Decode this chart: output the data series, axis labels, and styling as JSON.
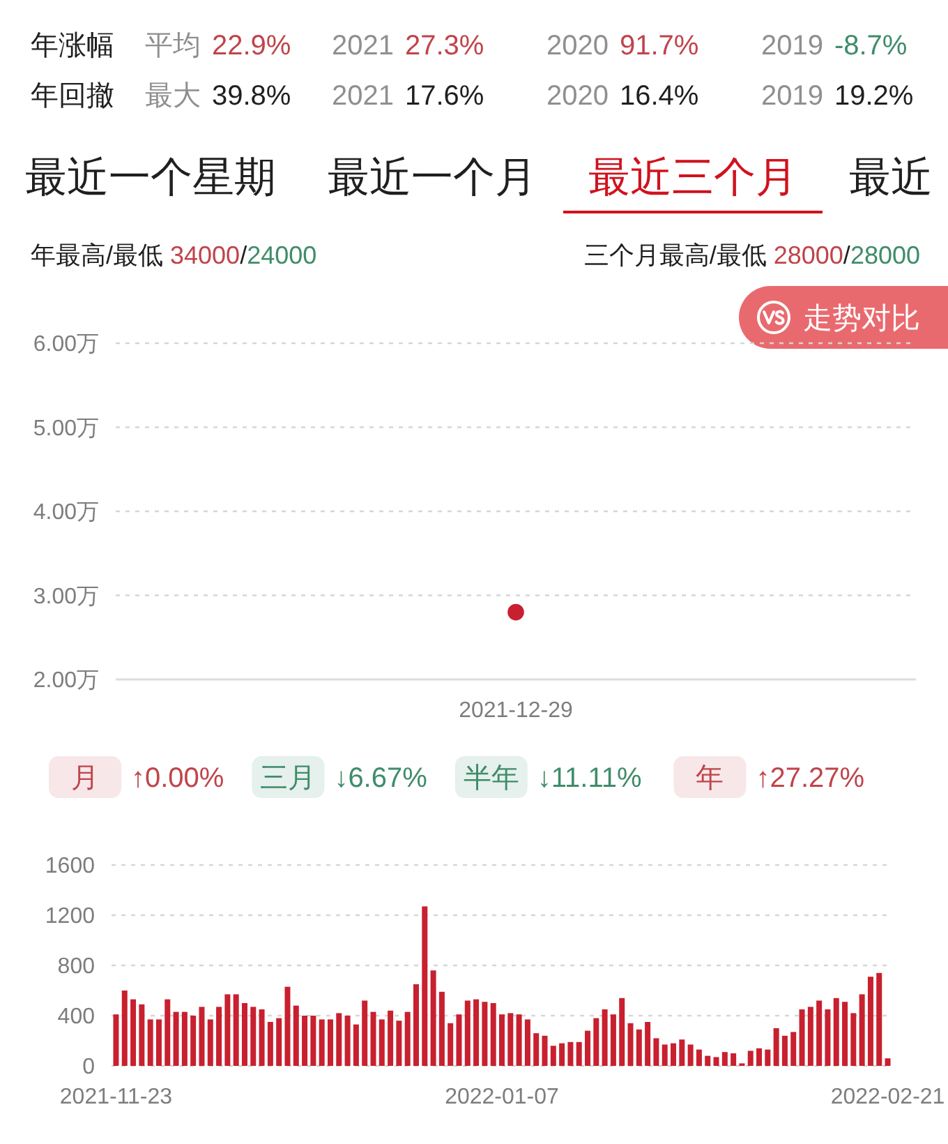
{
  "chart_data": [
    {
      "type": "other",
      "annotations": [
        "年涨幅",
        "平均",
        "22.9%",
        "2021",
        "27.3%",
        "2020",
        "91.7%",
        "2019",
        "-8.7%",
        "年回撤",
        "最大",
        "39.8%",
        "2021",
        "17.6%",
        "2020",
        "16.4%",
        "2019",
        "19.2%"
      ],
      "colors": [
        "#1f1f1f",
        "#8f8f8f",
        "#c0444b",
        "#8f8f8f",
        "#c0444b",
        "#8f8f8f",
        "#c0444b",
        "#8f8f8f",
        "#3f8c6a",
        "#1f1f1f",
        "#8f8f8f",
        "#1f1f1f",
        "#8f8f8f",
        "#1f1f1f",
        "#8f8f8f",
        "#1f1f1f",
        "#8f8f8f",
        "#1f1f1f"
      ]
    },
    {
      "type": "scatter",
      "annotations": [
        "最近一个星期",
        "最近一个月",
        "最近三个月",
        "最近",
        "年最高/最低 34000/24000",
        "三个月最高/最低 28000/28000",
        "走势对比"
      ],
      "categories": [
        "2021-12-29"
      ],
      "values": [
        2.8
      ],
      "color": "#c8202f",
      "marker": "circle",
      "ylim": [
        2,
        6
      ],
      "yticks": [
        {
          "value": 2,
          "label": "2.00万"
        },
        {
          "value": 3,
          "label": "3.00万"
        },
        {
          "value": 4,
          "label": "4.00万"
        },
        {
          "value": 5,
          "label": "5.00万"
        },
        {
          "value": 6,
          "label": "6.00万"
        }
      ],
      "grid": "y"
    },
    {
      "type": "other",
      "annotations": [
        "月",
        "↑0.00%",
        "三月",
        "↓6.67%",
        "半年",
        "↓11.11%",
        "年",
        "↑27.27%"
      ],
      "colors": [
        "#c0444b",
        "#c0444b",
        "#3f8c6a",
        "#3f8c6a",
        "#3f8c6a",
        "#3f8c6a",
        "#c0444b",
        "#c0444b"
      ]
    },
    {
      "type": "bar",
      "categories": [
        "2021-11-23",
        null,
        null,
        null,
        null,
        null,
        null,
        null,
        null,
        null,
        null,
        null,
        null,
        null,
        null,
        null,
        null,
        null,
        null,
        null,
        null,
        null,
        null,
        null,
        null,
        null,
        null,
        null,
        null,
        null,
        null,
        null,
        null,
        null,
        null,
        null,
        null,
        null,
        null,
        null,
        null,
        null,
        null,
        null,
        null,
        "2022-01-07",
        null,
        null,
        null,
        null,
        null,
        null,
        null,
        null,
        null,
        null,
        null,
        null,
        null,
        null,
        null,
        null,
        null,
        null,
        null,
        null,
        null,
        null,
        null,
        null,
        null,
        null,
        null,
        null,
        null,
        null,
        null,
        null,
        null,
        null,
        null,
        null,
        null,
        null,
        null,
        null,
        null,
        null,
        null,
        null,
        "2022-02-21"
      ],
      "values": [
        410,
        600,
        530,
        490,
        370,
        370,
        530,
        430,
        430,
        400,
        470,
        370,
        470,
        570,
        570,
        500,
        470,
        450,
        350,
        380,
        630,
        480,
        400,
        400,
        370,
        370,
        420,
        400,
        330,
        520,
        430,
        370,
        440,
        360,
        430,
        650,
        1270,
        760,
        590,
        340,
        410,
        520,
        530,
        510,
        500,
        410,
        420,
        410,
        370,
        260,
        240,
        160,
        180,
        190,
        190,
        280,
        380,
        450,
        410,
        540,
        340,
        290,
        350,
        220,
        170,
        180,
        210,
        170,
        130,
        80,
        70,
        110,
        100,
        20,
        120,
        140,
        130,
        300,
        240,
        270,
        450,
        470,
        520,
        450,
        540,
        510,
        420,
        570,
        710,
        740,
        60
      ],
      "color": "#c8202f",
      "ylim": [
        0,
        1600
      ],
      "yticks": [
        0,
        400,
        800,
        1200,
        1600
      ],
      "grid": "y"
    }
  ]
}
